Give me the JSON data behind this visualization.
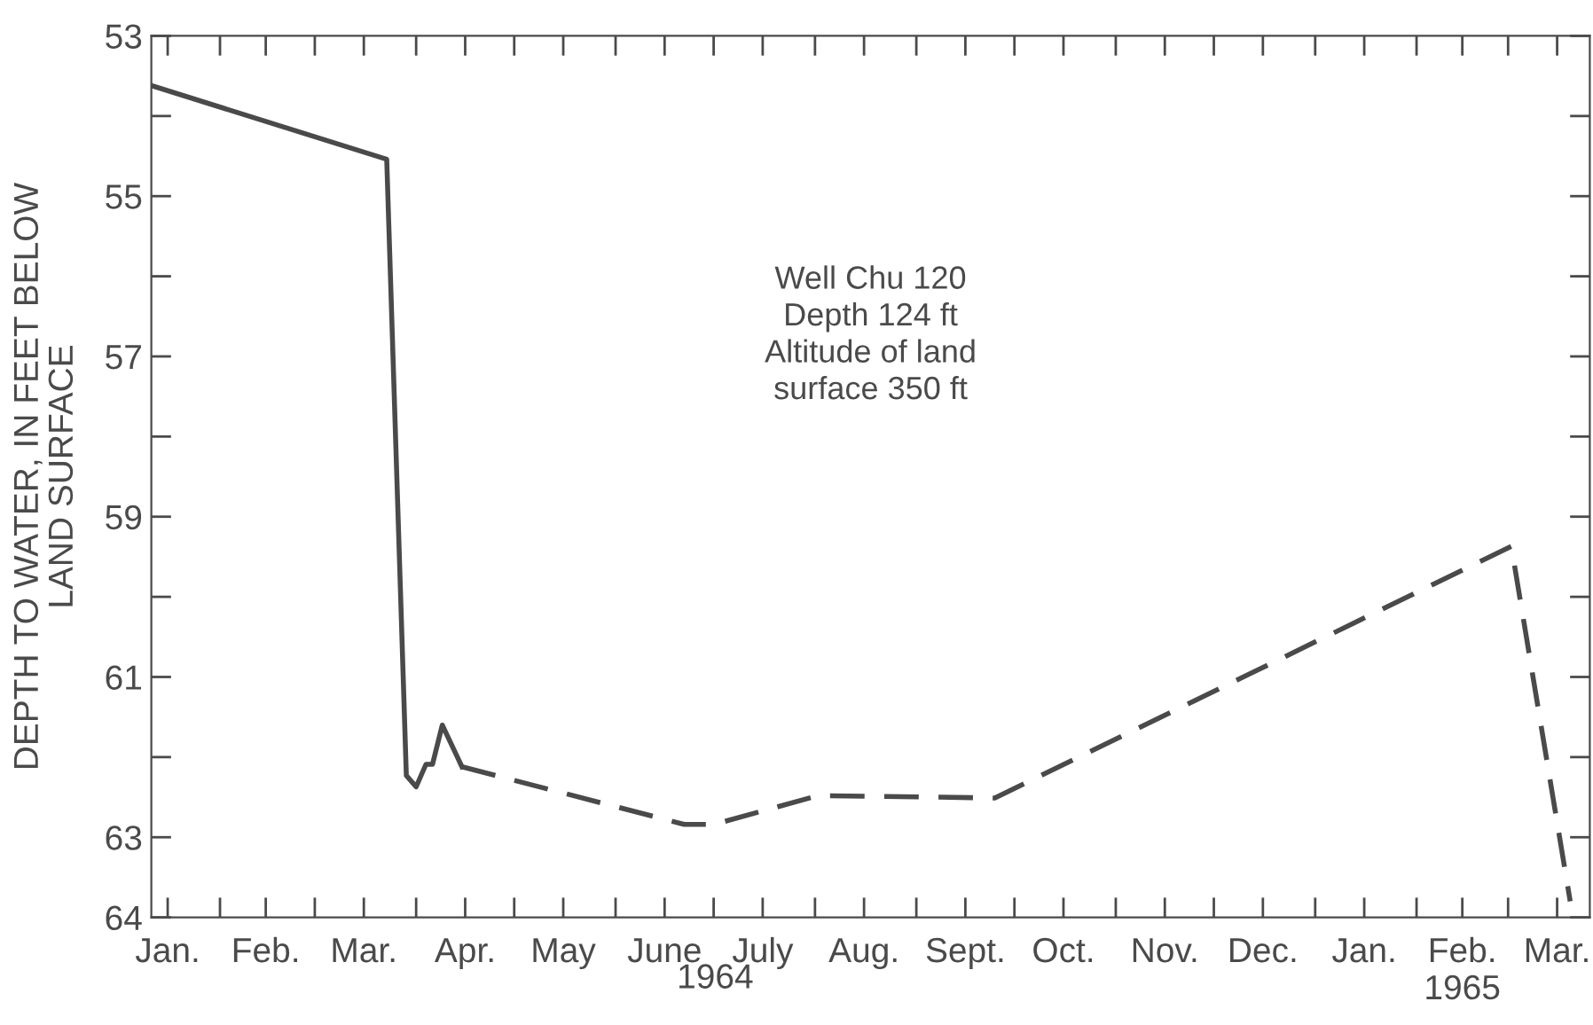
{
  "chart_data": {
    "type": "line",
    "xlabel": "1964",
    "ylabel": "DEPTH TO WATER, IN FEET BELOW\nLAND SURFACE",
    "annotations": [
      "Well Chu 120\nDepth 124 ft\nAltitude of land\nsurface 350 ft"
    ],
    "series": [
      {
        "color": "#4a4a4a",
        "line_style": "solid",
        "x": [
          "1964-01-11",
          "1964-03-23",
          "1964-03-29",
          "1964-04-01",
          "1964-04-04",
          "1964-04-06",
          "1964-04-09",
          "1964-04-15"
        ],
        "values": [
          53.62,
          54.54,
          62.23,
          62.37,
          62.09,
          62.09,
          61.6,
          62.12
        ]
      },
      {
        "color": "#4a4a4a",
        "line_style": "dashed",
        "x": [
          "1964-04-15",
          "1964-06-22",
          "1964-07-01",
          "1964-08-02",
          "1964-09-25",
          "1965-03-02",
          "1965-03-20"
        ],
        "values": [
          62.12,
          62.84,
          62.84,
          62.48,
          62.51,
          59.37,
          63.8
        ]
      }
    ],
    "xlim": [
      "1964-01-11",
      "1965-03-26"
    ],
    "xticks": [
      {
        "value": "1964-01-16",
        "label": "Jan."
      },
      {
        "value": "1964-02-01",
        "label": null
      },
      {
        "value": "1964-02-15",
        "label": "Feb."
      },
      {
        "value": "1964-03-01",
        "label": null
      },
      {
        "value": "1964-03-16",
        "label": "Mar."
      },
      {
        "value": "1964-04-01",
        "label": null
      },
      {
        "value": "1964-04-16",
        "label": "Apr."
      },
      {
        "value": "1964-05-01",
        "label": null
      },
      {
        "value": "1964-05-16",
        "label": "May"
      },
      {
        "value": "1964-06-01",
        "label": null
      },
      {
        "value": "1964-06-16",
        "label": "June"
      },
      {
        "value": "1964-07-01",
        "label": null
      },
      {
        "value": "1964-07-16",
        "label": "July"
      },
      {
        "value": "1964-08-01",
        "label": null
      },
      {
        "value": "1964-08-16",
        "label": "Aug."
      },
      {
        "value": "1964-09-01",
        "label": null
      },
      {
        "value": "1964-09-16",
        "label": "Sept."
      },
      {
        "value": "1964-10-01",
        "label": null
      },
      {
        "value": "1964-10-16",
        "label": "Oct."
      },
      {
        "value": "1964-11-01",
        "label": null
      },
      {
        "value": "1964-11-16",
        "label": "Nov."
      },
      {
        "value": "1964-12-01",
        "label": null
      },
      {
        "value": "1964-12-16",
        "label": "Dec."
      },
      {
        "value": "1965-01-01",
        "label": null
      },
      {
        "value": "1965-01-16",
        "label": "Jan."
      },
      {
        "value": "1965-02-01",
        "label": null
      },
      {
        "value": "1965-02-15",
        "label": "Feb.\n1965"
      },
      {
        "value": "1965-03-01",
        "label": null
      },
      {
        "value": "1965-03-16",
        "label": "Mar."
      }
    ],
    "ylim": [
      64,
      53
    ],
    "yticks": [
      53,
      {
        "value": 54,
        "label": null
      },
      55,
      {
        "value": 56,
        "label": null
      },
      57,
      {
        "value": 58,
        "label": null
      },
      59,
      {
        "value": 60,
        "label": null
      },
      61,
      {
        "value": 62,
        "label": null
      },
      63,
      64
    ],
    "grid": false
  }
}
